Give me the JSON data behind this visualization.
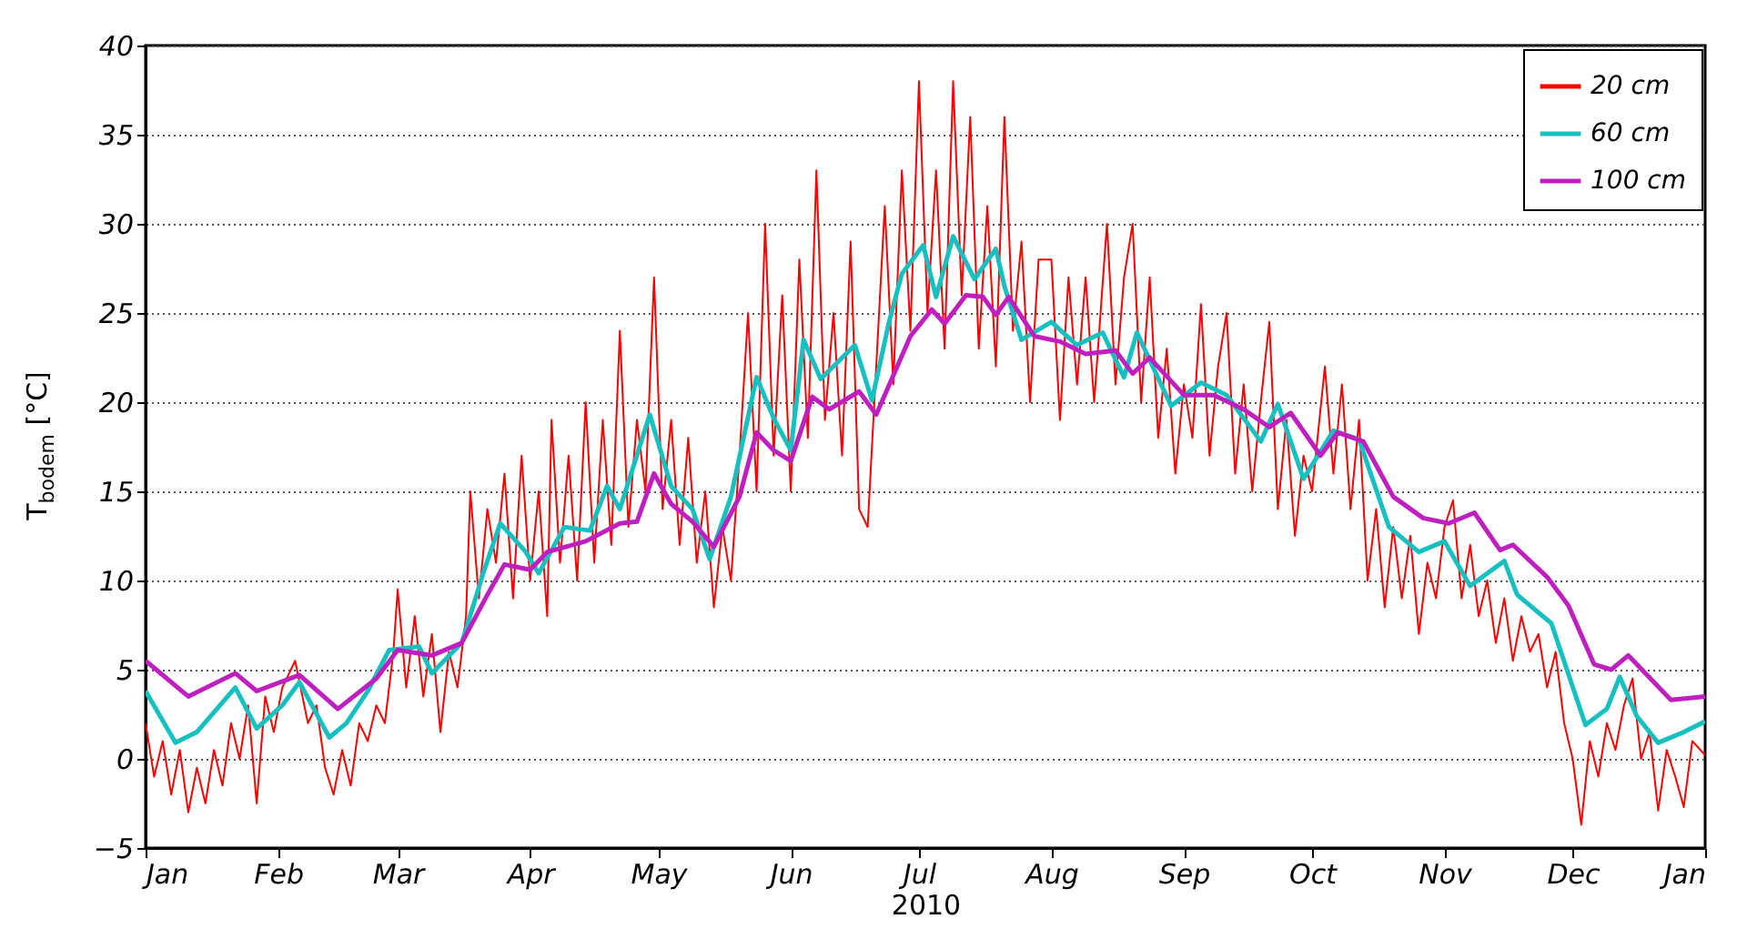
{
  "chart_data": {
    "type": "line",
    "xlabel": "2010",
    "ylabel": "T$_{bodem}$ [°C]",
    "xlim": [
      "2010-01-01",
      "2011-01-01"
    ],
    "xticks": [
      {
        "value": "2010-01-01",
        "label": "Jan"
      },
      {
        "value": "2010-02-01",
        "label": "Feb"
      },
      {
        "value": "2010-03-01",
        "label": "Mar"
      },
      {
        "value": "2010-04-01",
        "label": "Apr"
      },
      {
        "value": "2010-05-01",
        "label": "May"
      },
      {
        "value": "2010-06-01",
        "label": "Jun"
      },
      {
        "value": "2010-07-01",
        "label": "Jul"
      },
      {
        "value": "2010-08-01",
        "label": "Aug"
      },
      {
        "value": "2010-09-01",
        "label": "Sep"
      },
      {
        "value": "2010-10-01",
        "label": "Oct"
      },
      {
        "value": "2010-11-01",
        "label": "Nov"
      },
      {
        "value": "2010-12-01",
        "label": "Dec"
      },
      {
        "value": "2011-01-01",
        "label": "Jan"
      }
    ],
    "ylim": [
      -5,
      40
    ],
    "yticks": [
      -5,
      0,
      5,
      10,
      15,
      20,
      25,
      30,
      35,
      40
    ],
    "grid": "y",
    "legend": "top right",
    "series": [
      {
        "name": "20 cm",
        "color": "#ff0000",
        "x": [
          "2010-01-01",
          "2010-01-03",
          "2010-01-05",
          "2010-01-07",
          "2010-01-09",
          "2010-01-11",
          "2010-01-13",
          "2010-01-15",
          "2010-01-17",
          "2010-01-19",
          "2010-01-21",
          "2010-01-23",
          "2010-01-25",
          "2010-01-27",
          "2010-01-29",
          "2010-01-31",
          "2010-02-02",
          "2010-02-05",
          "2010-02-08",
          "2010-02-10",
          "2010-02-12",
          "2010-02-14",
          "2010-02-16",
          "2010-02-18",
          "2010-02-20",
          "2010-02-22",
          "2010-02-24",
          "2010-02-26",
          "2010-02-28",
          "2010-03-01",
          "2010-03-03",
          "2010-03-05",
          "2010-03-07",
          "2010-03-09",
          "2010-03-11",
          "2010-03-13",
          "2010-03-15",
          "2010-03-17",
          "2010-03-18",
          "2010-03-20",
          "2010-03-22",
          "2010-03-24",
          "2010-03-26",
          "2010-03-28",
          "2010-03-30",
          "2010-04-01",
          "2010-04-03",
          "2010-04-05",
          "2010-04-06",
          "2010-04-08",
          "2010-04-10",
          "2010-04-12",
          "2010-04-14",
          "2010-04-16",
          "2010-04-18",
          "2010-04-20",
          "2010-04-22",
          "2010-04-24",
          "2010-04-26",
          "2010-04-28",
          "2010-04-30",
          "2010-05-02",
          "2010-05-04",
          "2010-05-06",
          "2010-05-08",
          "2010-05-10",
          "2010-05-12",
          "2010-05-14",
          "2010-05-16",
          "2010-05-18",
          "2010-05-20",
          "2010-05-22",
          "2010-05-24",
          "2010-05-26",
          "2010-05-28",
          "2010-05-30",
          "2010-06-01",
          "2010-06-03",
          "2010-06-05",
          "2010-06-07",
          "2010-06-09",
          "2010-06-11",
          "2010-06-13",
          "2010-06-15",
          "2010-06-17",
          "2010-06-19",
          "2010-06-21",
          "2010-06-23",
          "2010-06-25",
          "2010-06-27",
          "2010-06-29",
          "2010-07-01",
          "2010-07-03",
          "2010-07-05",
          "2010-07-07",
          "2010-07-09",
          "2010-07-11",
          "2010-07-13",
          "2010-07-15",
          "2010-07-17",
          "2010-07-19",
          "2010-07-21",
          "2010-07-23",
          "2010-07-25",
          "2010-07-27",
          "2010-07-29",
          "2010-08-01",
          "2010-08-03",
          "2010-08-05",
          "2010-08-07",
          "2010-08-09",
          "2010-08-11",
          "2010-08-14",
          "2010-08-16",
          "2010-08-18",
          "2010-08-20",
          "2010-08-22",
          "2010-08-24",
          "2010-08-26",
          "2010-08-28",
          "2010-08-30",
          "2010-09-01",
          "2010-09-03",
          "2010-09-05",
          "2010-09-07",
          "2010-09-09",
          "2010-09-11",
          "2010-09-13",
          "2010-09-15",
          "2010-09-17",
          "2010-09-19",
          "2010-09-21",
          "2010-09-23",
          "2010-09-25",
          "2010-09-27",
          "2010-09-29",
          "2010-10-01",
          "2010-10-04",
          "2010-10-06",
          "2010-10-08",
          "2010-10-10",
          "2010-10-12",
          "2010-10-14",
          "2010-10-16",
          "2010-10-18",
          "2010-10-20",
          "2010-10-22",
          "2010-10-24",
          "2010-10-26",
          "2010-10-28",
          "2010-10-30",
          "2010-11-01",
          "2010-11-03",
          "2010-11-05",
          "2010-11-07",
          "2010-11-09",
          "2010-11-11",
          "2010-11-13",
          "2010-11-15",
          "2010-11-17",
          "2010-11-19",
          "2010-11-21",
          "2010-11-23",
          "2010-11-25",
          "2010-11-27",
          "2010-11-29",
          "2010-12-01",
          "2010-12-03",
          "2010-12-05",
          "2010-12-07",
          "2010-12-09",
          "2010-12-11",
          "2010-12-13",
          "2010-12-15",
          "2010-12-17",
          "2010-12-19",
          "2010-12-21",
          "2010-12-23",
          "2010-12-25",
          "2010-12-27",
          "2010-12-29",
          "2011-01-01"
        ],
        "values": [
          2,
          -1,
          1,
          -2,
          0.5,
          -3,
          -0.5,
          -2.5,
          0.5,
          -1.5,
          2,
          0,
          3,
          -2.5,
          3.5,
          1.5,
          4,
          5.5,
          2,
          3,
          -0.5,
          -2,
          0.5,
          -1.5,
          2,
          1,
          3,
          2,
          6,
          9.5,
          4,
          8,
          3.5,
          7,
          1.5,
          6,
          4,
          8,
          15,
          9,
          14,
          11,
          16,
          9,
          17,
          10,
          15,
          8,
          19,
          11,
          17,
          10,
          20,
          11,
          19,
          12,
          24,
          13,
          19,
          15,
          27,
          14,
          19,
          12,
          18,
          11,
          15,
          8.5,
          13,
          10,
          17,
          25,
          15,
          30,
          17,
          26,
          15,
          28,
          18,
          33,
          19,
          25,
          17,
          29,
          14,
          13,
          22,
          31,
          21,
          33,
          24,
          38,
          25,
          33,
          23,
          38,
          26,
          36,
          23,
          31,
          22,
          36,
          24,
          29,
          20,
          28,
          28,
          19,
          27,
          21,
          27,
          20,
          30,
          21,
          27,
          30,
          20,
          27,
          18,
          23,
          16,
          21,
          18,
          25.5,
          17,
          22,
          25,
          16,
          21,
          15,
          20,
          24.5,
          14,
          19,
          12.5,
          17,
          15,
          22,
          16,
          21,
          14,
          19,
          10,
          14,
          8.5,
          13,
          9,
          12.5,
          7,
          11,
          9,
          13,
          14.5,
          9,
          12,
          8,
          10,
          6.5,
          9,
          5.5,
          8,
          6,
          7,
          4,
          6,
          2,
          0,
          -3.7,
          1,
          -1,
          2,
          0.5,
          3,
          4.5,
          0,
          1.5,
          -2.9,
          0.5,
          -1,
          -2.7,
          1,
          0.2
        ]
      },
      {
        "name": "60 cm",
        "color": "#17c0c0",
        "x": [
          "2010-01-01",
          "2010-01-08",
          "2010-01-13",
          "2010-01-22",
          "2010-01-27",
          "2010-02-02",
          "2010-02-06",
          "2010-02-13",
          "2010-02-17",
          "2010-02-22",
          "2010-02-27",
          "2010-03-06",
          "2010-03-09",
          "2010-03-16",
          "2010-03-21",
          "2010-03-25",
          "2010-03-31",
          "2010-04-03",
          "2010-04-09",
          "2010-04-15",
          "2010-04-19",
          "2010-04-22",
          "2010-04-29",
          "2010-05-04",
          "2010-05-09",
          "2010-05-13",
          "2010-05-18",
          "2010-05-24",
          "2010-05-28",
          "2010-06-01",
          "2010-06-04",
          "2010-06-08",
          "2010-06-16",
          "2010-06-20",
          "2010-06-24",
          "2010-06-27",
          "2010-07-02",
          "2010-07-05",
          "2010-07-09",
          "2010-07-14",
          "2010-07-19",
          "2010-07-21",
          "2010-07-25",
          "2010-08-01",
          "2010-08-07",
          "2010-08-13",
          "2010-08-18",
          "2010-08-21",
          "2010-08-29",
          "2010-09-05",
          "2010-09-11",
          "2010-09-19",
          "2010-09-23",
          "2010-09-29",
          "2010-10-06",
          "2010-10-12",
          "2010-10-19",
          "2010-10-26",
          "2010-11-01",
          "2010-11-07",
          "2010-11-15",
          "2010-11-18",
          "2010-11-26",
          "2010-12-04",
          "2010-12-09",
          "2010-12-12",
          "2010-12-16",
          "2010-12-21",
          "2010-12-27",
          "2011-01-01"
        ],
        "values": [
          3.8,
          0.9,
          1.5,
          4,
          1.7,
          3,
          4.3,
          1.2,
          2,
          3.8,
          6.1,
          6.3,
          4.8,
          6.5,
          10.4,
          13.2,
          11.6,
          10.4,
          13,
          12.8,
          15.3,
          14,
          19.3,
          15.3,
          14,
          11.2,
          14.7,
          21.4,
          19.1,
          17.3,
          23.5,
          21.3,
          23.2,
          20.1,
          24.5,
          27.2,
          28.8,
          25.9,
          29.3,
          26.9,
          28.6,
          26.5,
          23.5,
          24.5,
          23.2,
          23.9,
          21.4,
          23.9,
          19.8,
          21.1,
          20.4,
          17.8,
          19.9,
          15.7,
          18.4,
          17.9,
          13,
          11.6,
          12.2,
          9.7,
          11.1,
          9.2,
          7.6,
          1.9,
          2.8,
          4.6,
          2.4,
          0.9,
          1.5,
          2.1
        ]
      },
      {
        "name": "100 cm",
        "color": "#bf1fbf",
        "x": [
          "2010-01-01",
          "2010-01-11",
          "2010-01-22",
          "2010-01-27",
          "2010-02-06",
          "2010-02-15",
          "2010-02-24",
          "2010-03-01",
          "2010-03-09",
          "2010-03-16",
          "2010-03-22",
          "2010-03-26",
          "2010-04-01",
          "2010-04-05",
          "2010-04-14",
          "2010-04-22",
          "2010-04-26",
          "2010-04-30",
          "2010-05-04",
          "2010-05-09",
          "2010-05-14",
          "2010-05-20",
          "2010-05-24",
          "2010-05-28",
          "2010-06-01",
          "2010-06-06",
          "2010-06-10",
          "2010-06-17",
          "2010-06-21",
          "2010-06-29",
          "2010-07-04",
          "2010-07-07",
          "2010-07-12",
          "2010-07-16",
          "2010-07-19",
          "2010-07-22",
          "2010-07-28",
          "2010-08-03",
          "2010-08-09",
          "2010-08-16",
          "2010-08-20",
          "2010-08-24",
          "2010-09-01",
          "2010-09-08",
          "2010-09-15",
          "2010-09-21",
          "2010-09-26",
          "2010-10-03",
          "2010-10-07",
          "2010-10-13",
          "2010-10-20",
          "2010-10-27",
          "2010-11-02",
          "2010-11-08",
          "2010-11-14",
          "2010-11-17",
          "2010-11-25",
          "2010-11-30",
          "2010-12-06",
          "2010-12-10",
          "2010-12-14",
          "2010-12-24",
          "2011-01-01"
        ],
        "values": [
          5.5,
          3.5,
          4.8,
          3.8,
          4.7,
          2.8,
          4.5,
          6.1,
          5.8,
          6.5,
          9.2,
          10.9,
          10.6,
          11.6,
          12.2,
          13.2,
          13.3,
          16,
          14.3,
          13.3,
          11.9,
          14.7,
          18.3,
          17.3,
          16.7,
          20.3,
          19.6,
          20.6,
          19.3,
          23.7,
          25.2,
          24.4,
          26,
          25.9,
          24.9,
          25.9,
          23.7,
          23.4,
          22.7,
          22.9,
          21.6,
          22.5,
          20.4,
          20.4,
          19.6,
          18.6,
          19.4,
          17,
          18.3,
          17.8,
          14.7,
          13.5,
          13.2,
          13.8,
          11.7,
          12,
          10.2,
          8.6,
          5.3,
          5,
          5.8,
          3.3,
          3.5
        ]
      }
    ]
  }
}
